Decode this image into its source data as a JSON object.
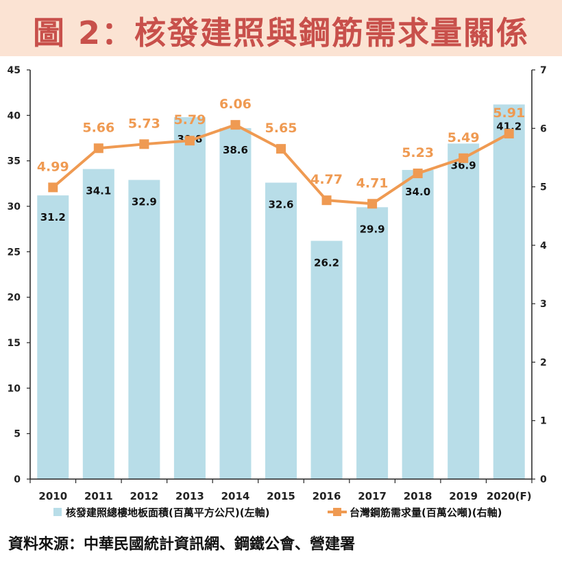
{
  "title": "圖 2：核發建照與鋼筋需求量關係",
  "source": "資料來源：中華民國統計資訊網、鋼鐵公會、營建署",
  "colors": {
    "bar": "#b8dde8",
    "line": "#ef9a52",
    "value_label": "#ef9a52",
    "axis": "#222222",
    "title": "#c8504b",
    "title_bg": "#fbe3d3"
  },
  "chart_data": {
    "type": "bar+line",
    "categories": [
      "2010",
      "2011",
      "2012",
      "2013",
      "2014",
      "2015",
      "2016",
      "2017",
      "2018",
      "2019",
      "2020(F)"
    ],
    "series": [
      {
        "name": "核發建照總樓地板面積(百萬平方公尺)(左軸)",
        "type": "bar",
        "axis": "left",
        "values": [
          31.2,
          34.1,
          32.9,
          39.8,
          38.6,
          32.6,
          26.2,
          29.9,
          34.0,
          36.9,
          41.2
        ],
        "labels": [
          "31.2",
          "34.1",
          "32.9",
          "39.8",
          "38.6",
          "32.6",
          "26.2",
          "29.9",
          "34.0",
          "36.9",
          "41.2"
        ]
      },
      {
        "name": "台灣鋼筋需求量(百萬公噸)(右軸)",
        "type": "line",
        "axis": "right",
        "values": [
          4.99,
          5.66,
          5.73,
          5.79,
          6.06,
          5.65,
          4.77,
          4.71,
          5.23,
          5.49,
          5.91
        ],
        "labels": [
          "4.99",
          "5.66",
          "5.73",
          "5.79",
          "6.06",
          "5.65",
          "4.77",
          "4.71",
          "5.23",
          "5.49",
          "5.91"
        ]
      }
    ],
    "y_left": {
      "min": 0,
      "max": 45,
      "ticks": [
        "0",
        "5",
        "10",
        "15",
        "20",
        "25",
        "30",
        "35",
        "40",
        "45"
      ]
    },
    "y_right": {
      "min": 0,
      "max": 7,
      "ticks": [
        "0",
        "1",
        "2",
        "3",
        "4",
        "5",
        "6",
        "7"
      ]
    },
    "legend_position": "bottom",
    "grid": false
  }
}
